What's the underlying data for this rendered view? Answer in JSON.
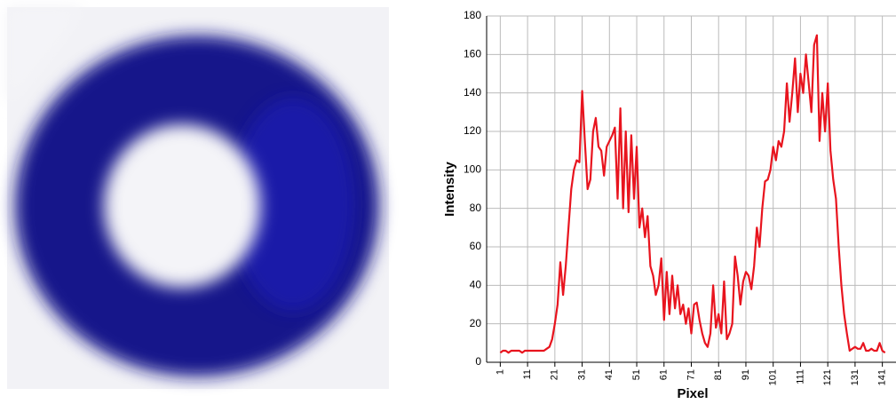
{
  "chart_data": {
    "type": "line",
    "x_label": "Pixel",
    "y_label": "Intensity",
    "x": [
      1,
      2,
      3,
      4,
      5,
      6,
      7,
      8,
      9,
      10,
      11,
      12,
      13,
      14,
      15,
      16,
      17,
      18,
      19,
      20,
      21,
      22,
      23,
      24,
      25,
      26,
      27,
      28,
      29,
      30,
      31,
      32,
      33,
      34,
      35,
      36,
      37,
      38,
      39,
      40,
      41,
      42,
      43,
      44,
      45,
      46,
      47,
      48,
      49,
      50,
      51,
      52,
      53,
      54,
      55,
      56,
      57,
      58,
      59,
      60,
      61,
      62,
      63,
      64,
      65,
      66,
      67,
      68,
      69,
      70,
      71,
      72,
      73,
      74,
      75,
      76,
      77,
      78,
      79,
      80,
      81,
      82,
      83,
      84,
      85,
      86,
      87,
      88,
      89,
      90,
      91,
      92,
      93,
      94,
      95,
      96,
      97,
      98,
      99,
      100,
      101,
      102,
      103,
      104,
      105,
      106,
      107,
      108,
      109,
      110,
      111,
      112,
      113,
      114,
      115,
      116,
      117,
      118,
      119,
      120,
      121,
      122,
      123,
      124,
      125,
      126,
      127,
      128,
      129,
      130,
      131,
      132,
      133,
      134,
      135,
      136,
      137,
      138,
      139,
      140,
      141,
      142
    ],
    "values": [
      5,
      6,
      6,
      5,
      6,
      6,
      6,
      6,
      5,
      6,
      6,
      6,
      6,
      6,
      6,
      6,
      6,
      7,
      8,
      12,
      20,
      30,
      52,
      35,
      50,
      70,
      90,
      100,
      105,
      104,
      141,
      115,
      90,
      95,
      120,
      127,
      112,
      110,
      97,
      112,
      115,
      118,
      122,
      85,
      132,
      80,
      120,
      78,
      118,
      85,
      112,
      70,
      80,
      65,
      76,
      50,
      45,
      35,
      40,
      54,
      22,
      47,
      25,
      45,
      28,
      40,
      25,
      30,
      20,
      28,
      15,
      30,
      31,
      22,
      15,
      10,
      8,
      15,
      40,
      18,
      25,
      15,
      42,
      12,
      15,
      20,
      55,
      45,
      30,
      42,
      47,
      45,
      38,
      50,
      70,
      60,
      80,
      94,
      95,
      100,
      112,
      105,
      115,
      112,
      120,
      145,
      125,
      140,
      158,
      130,
      150,
      140,
      160,
      145,
      130,
      165,
      170,
      115,
      140,
      120,
      145,
      110,
      95,
      85,
      60,
      40,
      25,
      15,
      6,
      7,
      8,
      7,
      7,
      10,
      6,
      6,
      7,
      6,
      6,
      10,
      6,
      5
    ],
    "color": "#e8141e",
    "xlim": [
      -4,
      146
    ],
    "xticks": [
      1,
      11,
      21,
      31,
      41,
      51,
      61,
      71,
      81,
      91,
      101,
      111,
      121,
      131,
      141
    ],
    "ylim": [
      0,
      180
    ],
    "yticks": [
      0,
      20,
      40,
      60,
      80,
      100,
      120,
      140,
      160,
      180
    ],
    "grid": true
  }
}
